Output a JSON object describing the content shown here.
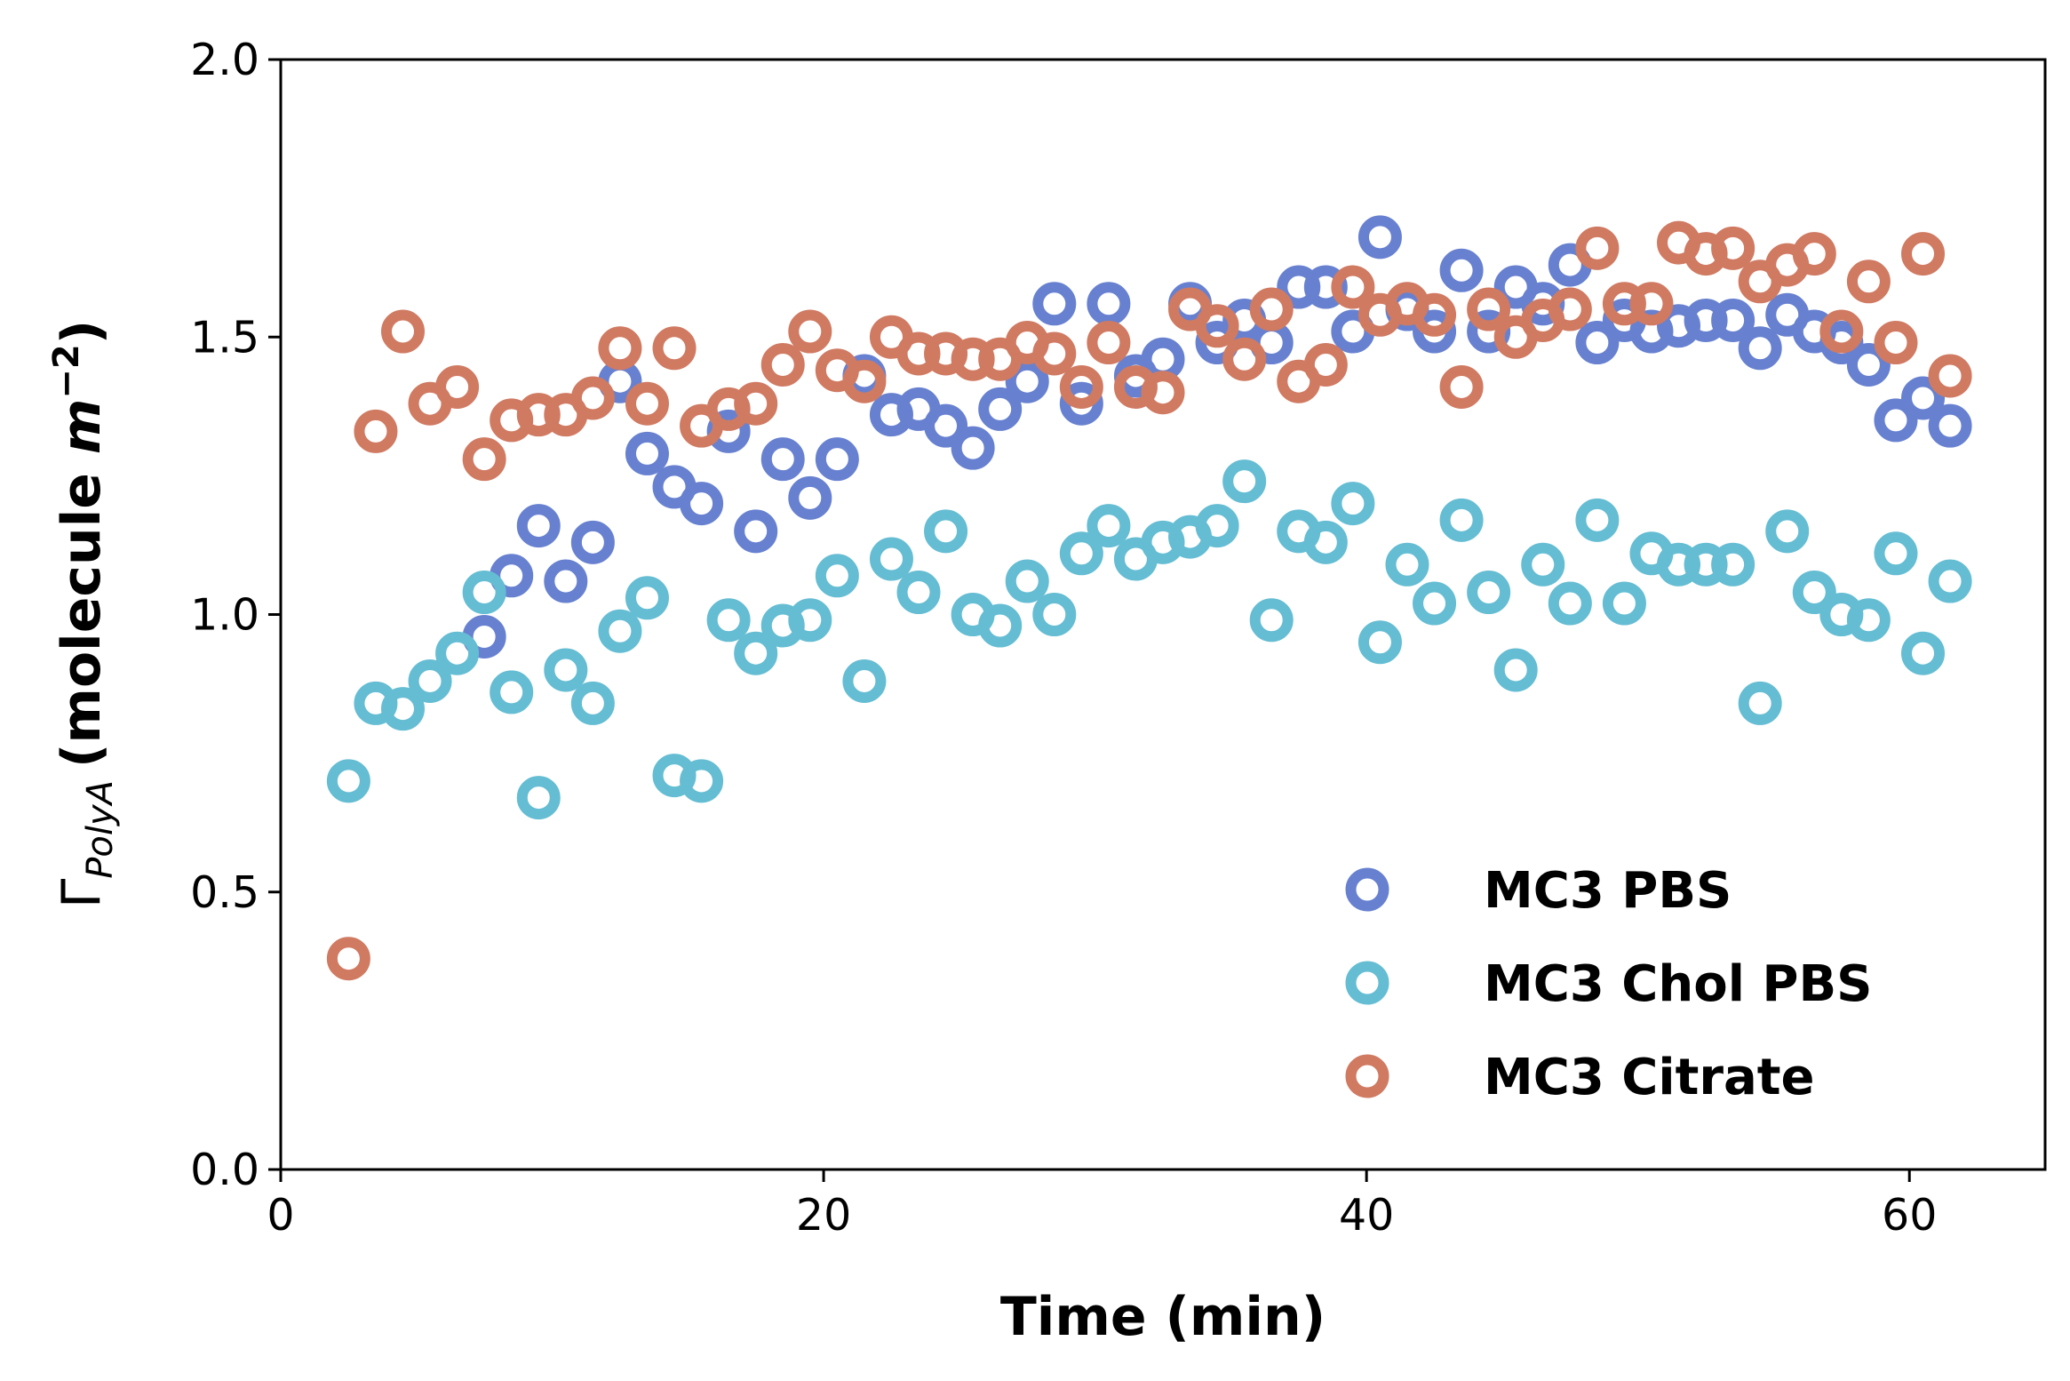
{
  "chart_data": {
    "type": "scatter",
    "xlabel": "Time (min)",
    "ylabel": {
      "symbol": "Γ",
      "subscript": "PolyA",
      "text_open": "(molecule ",
      "var": "m",
      "superscript": "−2",
      "text_close": ")"
    },
    "xlim": [
      0,
      65
    ],
    "ylim": [
      0,
      2.0
    ],
    "xticks": [
      "0",
      "20",
      "40",
      "60"
    ],
    "yticks": [
      "0.0",
      "0.5",
      "1.0",
      "1.5",
      "2.0"
    ],
    "grid": false,
    "legend_position": "bottom-right",
    "series": [
      {
        "name": "MC3 PBS",
        "color": "#6781d0",
        "points": [
          [
            7.5,
            0.96
          ],
          [
            8.5,
            1.07
          ],
          [
            9.5,
            1.16
          ],
          [
            10.5,
            1.06
          ],
          [
            11.5,
            1.13
          ],
          [
            12.5,
            1.42
          ],
          [
            13.5,
            1.29
          ],
          [
            14.5,
            1.23
          ],
          [
            15.5,
            1.2
          ],
          [
            16.5,
            1.33
          ],
          [
            17.5,
            1.15
          ],
          [
            18.5,
            1.28
          ],
          [
            19.5,
            1.21
          ],
          [
            20.5,
            1.28
          ],
          [
            21.5,
            1.43
          ],
          [
            22.5,
            1.36
          ],
          [
            23.5,
            1.37
          ],
          [
            24.5,
            1.34
          ],
          [
            25.5,
            1.3
          ],
          [
            26.5,
            1.37
          ],
          [
            27.5,
            1.42
          ],
          [
            28.5,
            1.56
          ],
          [
            29.5,
            1.38
          ],
          [
            30.5,
            1.56
          ],
          [
            31.5,
            1.43
          ],
          [
            32.5,
            1.46
          ],
          [
            33.5,
            1.56
          ],
          [
            34.5,
            1.49
          ],
          [
            35.5,
            1.53
          ],
          [
            36.5,
            1.49
          ],
          [
            37.5,
            1.59
          ],
          [
            38.5,
            1.59
          ],
          [
            39.5,
            1.51
          ],
          [
            40.5,
            1.68
          ],
          [
            41.5,
            1.55
          ],
          [
            42.5,
            1.51
          ],
          [
            43.5,
            1.62
          ],
          [
            44.5,
            1.51
          ],
          [
            45.5,
            1.59
          ],
          [
            46.5,
            1.56
          ],
          [
            47.5,
            1.63
          ],
          [
            48.5,
            1.49
          ],
          [
            49.5,
            1.53
          ],
          [
            50.5,
            1.51
          ],
          [
            51.5,
            1.52
          ],
          [
            52.5,
            1.53
          ],
          [
            53.5,
            1.53
          ],
          [
            54.5,
            1.48
          ],
          [
            55.5,
            1.54
          ],
          [
            56.5,
            1.51
          ],
          [
            57.5,
            1.49
          ],
          [
            58.5,
            1.45
          ],
          [
            59.5,
            1.35
          ],
          [
            60.5,
            1.39
          ],
          [
            61.5,
            1.34
          ]
        ]
      },
      {
        "name": "MC3 Chol PBS",
        "color": "#65bdd3",
        "points": [
          [
            2.5,
            0.7
          ],
          [
            3.5,
            0.84
          ],
          [
            4.5,
            0.83
          ],
          [
            5.5,
            0.88
          ],
          [
            6.5,
            0.93
          ],
          [
            7.5,
            1.04
          ],
          [
            8.5,
            0.86
          ],
          [
            9.5,
            0.67
          ],
          [
            10.5,
            0.9
          ],
          [
            11.5,
            0.84
          ],
          [
            12.5,
            0.97
          ],
          [
            13.5,
            1.03
          ],
          [
            14.5,
            0.71
          ],
          [
            15.5,
            0.7
          ],
          [
            16.5,
            0.99
          ],
          [
            17.5,
            0.93
          ],
          [
            18.5,
            0.98
          ],
          [
            19.5,
            0.99
          ],
          [
            20.5,
            1.07
          ],
          [
            21.5,
            0.88
          ],
          [
            22.5,
            1.1
          ],
          [
            23.5,
            1.04
          ],
          [
            24.5,
            1.15
          ],
          [
            25.5,
            1.0
          ],
          [
            26.5,
            0.98
          ],
          [
            27.5,
            1.06
          ],
          [
            28.5,
            1.0
          ],
          [
            29.5,
            1.11
          ],
          [
            30.5,
            1.16
          ],
          [
            31.5,
            1.1
          ],
          [
            32.5,
            1.13
          ],
          [
            33.5,
            1.14
          ],
          [
            34.5,
            1.16
          ],
          [
            35.5,
            1.24
          ],
          [
            36.5,
            0.99
          ],
          [
            37.5,
            1.15
          ],
          [
            38.5,
            1.13
          ],
          [
            39.5,
            1.2
          ],
          [
            40.5,
            0.95
          ],
          [
            41.5,
            1.09
          ],
          [
            42.5,
            1.02
          ],
          [
            43.5,
            1.17
          ],
          [
            44.5,
            1.04
          ],
          [
            45.5,
            0.9
          ],
          [
            46.5,
            1.09
          ],
          [
            47.5,
            1.02
          ],
          [
            48.5,
            1.17
          ],
          [
            49.5,
            1.02
          ],
          [
            50.5,
            1.11
          ],
          [
            51.5,
            1.09
          ],
          [
            52.5,
            1.09
          ],
          [
            53.5,
            1.09
          ],
          [
            54.5,
            0.84
          ],
          [
            55.5,
            1.15
          ],
          [
            56.5,
            1.04
          ],
          [
            57.5,
            1.0
          ],
          [
            58.5,
            0.99
          ],
          [
            59.5,
            1.11
          ],
          [
            60.5,
            0.93
          ],
          [
            61.5,
            1.06
          ]
        ]
      },
      {
        "name": "MC3 Citrate",
        "color": "#d07a62",
        "points": [
          [
            2.5,
            0.38
          ],
          [
            3.5,
            1.33
          ],
          [
            4.5,
            1.51
          ],
          [
            5.5,
            1.38
          ],
          [
            6.5,
            1.41
          ],
          [
            7.5,
            1.28
          ],
          [
            8.5,
            1.35
          ],
          [
            9.5,
            1.36
          ],
          [
            10.5,
            1.36
          ],
          [
            11.5,
            1.39
          ],
          [
            12.5,
            1.48
          ],
          [
            13.5,
            1.38
          ],
          [
            14.5,
            1.48
          ],
          [
            15.5,
            1.34
          ],
          [
            16.5,
            1.37
          ],
          [
            17.5,
            1.38
          ],
          [
            18.5,
            1.45
          ],
          [
            19.5,
            1.51
          ],
          [
            20.5,
            1.44
          ],
          [
            21.5,
            1.42
          ],
          [
            22.5,
            1.5
          ],
          [
            23.5,
            1.47
          ],
          [
            24.5,
            1.47
          ],
          [
            25.5,
            1.46
          ],
          [
            26.5,
            1.46
          ],
          [
            27.5,
            1.49
          ],
          [
            28.5,
            1.47
          ],
          [
            29.5,
            1.41
          ],
          [
            30.5,
            1.49
          ],
          [
            31.5,
            1.41
          ],
          [
            32.5,
            1.4
          ],
          [
            33.5,
            1.55
          ],
          [
            34.5,
            1.52
          ],
          [
            35.5,
            1.46
          ],
          [
            36.5,
            1.55
          ],
          [
            37.5,
            1.42
          ],
          [
            38.5,
            1.45
          ],
          [
            39.5,
            1.59
          ],
          [
            40.5,
            1.54
          ],
          [
            41.5,
            1.56
          ],
          [
            42.5,
            1.54
          ],
          [
            43.5,
            1.41
          ],
          [
            44.5,
            1.55
          ],
          [
            45.5,
            1.5
          ],
          [
            46.5,
            1.53
          ],
          [
            47.5,
            1.55
          ],
          [
            48.5,
            1.66
          ],
          [
            49.5,
            1.56
          ],
          [
            50.5,
            1.56
          ],
          [
            51.5,
            1.67
          ],
          [
            52.5,
            1.65
          ],
          [
            53.5,
            1.66
          ],
          [
            54.5,
            1.6
          ],
          [
            55.5,
            1.63
          ],
          [
            56.5,
            1.65
          ],
          [
            57.5,
            1.51
          ],
          [
            58.5,
            1.6
          ],
          [
            59.5,
            1.49
          ],
          [
            60.5,
            1.65
          ],
          [
            61.5,
            1.43
          ]
        ]
      }
    ]
  }
}
